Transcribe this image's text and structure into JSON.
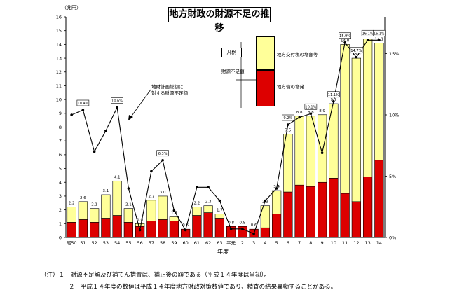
{
  "chart_data": {
    "type": "bar",
    "title": "地方財政の財源不足の推移",
    "unit_label": "（兆円）",
    "xlabel": "年度",
    "categories": [
      "昭50",
      "51",
      "52",
      "53",
      "54",
      "55",
      "56",
      "57",
      "58",
      "59",
      "60",
      "61",
      "62",
      "63",
      "平元",
      "2",
      "3",
      "4",
      "5",
      "6",
      "7",
      "8",
      "9",
      "10",
      "11",
      "12",
      "13",
      "14"
    ],
    "series": [
      {
        "name": "地方債の増発",
        "values": [
          1.1,
          1.3,
          1.1,
          1.4,
          1.6,
          1.1,
          0.8,
          1.2,
          1.3,
          1.2,
          0.6,
          1.6,
          1.8,
          1.4,
          0.8,
          0.8,
          0.6,
          0.7,
          1.7,
          3.3,
          3.8,
          3.7,
          4.0,
          4.3,
          3.2,
          2.6,
          4.4,
          5.6
        ],
        "color": "#dd0000"
      },
      {
        "name": "地方交付税の増額等",
        "values": [
          1.1,
          1.3,
          1.0,
          1.7,
          2.5,
          1.0,
          0.2,
          1.5,
          1.7,
          0.3,
          0.0,
          0.6,
          0.5,
          0.3,
          0.0,
          0.0,
          0.0,
          1.6,
          1.7,
          4.2,
          5.0,
          5.1,
          4.9,
          5.4,
          10.8,
          10.4,
          10.0,
          8.5
        ],
        "color": "#ffff99"
      }
    ],
    "totals": [
      "2.2",
      "2.6",
      "2.1",
      "3.1",
      "4.1",
      "2.1",
      "1.0",
      "2.7",
      "3.0",
      "1.5",
      "0.6",
      "2.2",
      "2.3",
      "1.7",
      "0.8",
      "0.8",
      "0.6",
      "2.3",
      "3.4",
      "7.5",
      "8.8",
      "8.8",
      "8.9",
      "9.7",
      "14.0",
      "13.0",
      "14.4",
      "14.1"
    ],
    "ratio_series": {
      "name": "地方財政計画総額に対する財源不足額",
      "values": [
        10.0,
        10.4,
        7.0,
        8.7,
        10.6,
        4.0,
        0.6,
        5.4,
        6.3,
        2.2,
        0.6,
        4.1,
        4.1,
        3.0,
        0.7,
        0.7,
        0.3,
        3.0,
        4.0,
        9.2,
        9.8,
        10.1,
        6.9,
        11.1,
        15.9,
        14.7,
        16.1,
        16.1
      ],
      "labels": {
        "1": "10.4%",
        "4": "10.6%",
        "8": "6.3%",
        "19": "9.2%",
        "21": "10.1%",
        "23": "11.1%",
        "24": "15.9%",
        "25": "14.7%",
        "26": "16.1%",
        "27": "16.1%"
      }
    },
    "y_left": {
      "min": 0,
      "max": 16,
      "ticks": [
        "0",
        "1",
        "2",
        "3",
        "4",
        "5",
        "6",
        "7",
        "8",
        "9",
        "10",
        "11",
        "12",
        "13",
        "14",
        "15",
        "16"
      ]
    },
    "y_right": {
      "min": 0,
      "max": 18,
      "ticks": [
        "0%",
        "5%",
        "10%",
        "15%"
      ]
    }
  },
  "legend": {
    "title": "凡例",
    "main": "財源不足額",
    "yellow": "地方交付税の増額等",
    "red": "地方債の増発"
  },
  "callout": {
    "line1": "地財計画総額に",
    "line2": "対する財源不足額"
  },
  "notes": {
    "line1": "（注）１　財源不足額及び補てん措置は、補正後の額である（平成１４年度は当初）。",
    "line2": "２　平成１４年度の数値は平成１４年度地方財政対策数値であり、精査の結果異動することがある。"
  }
}
